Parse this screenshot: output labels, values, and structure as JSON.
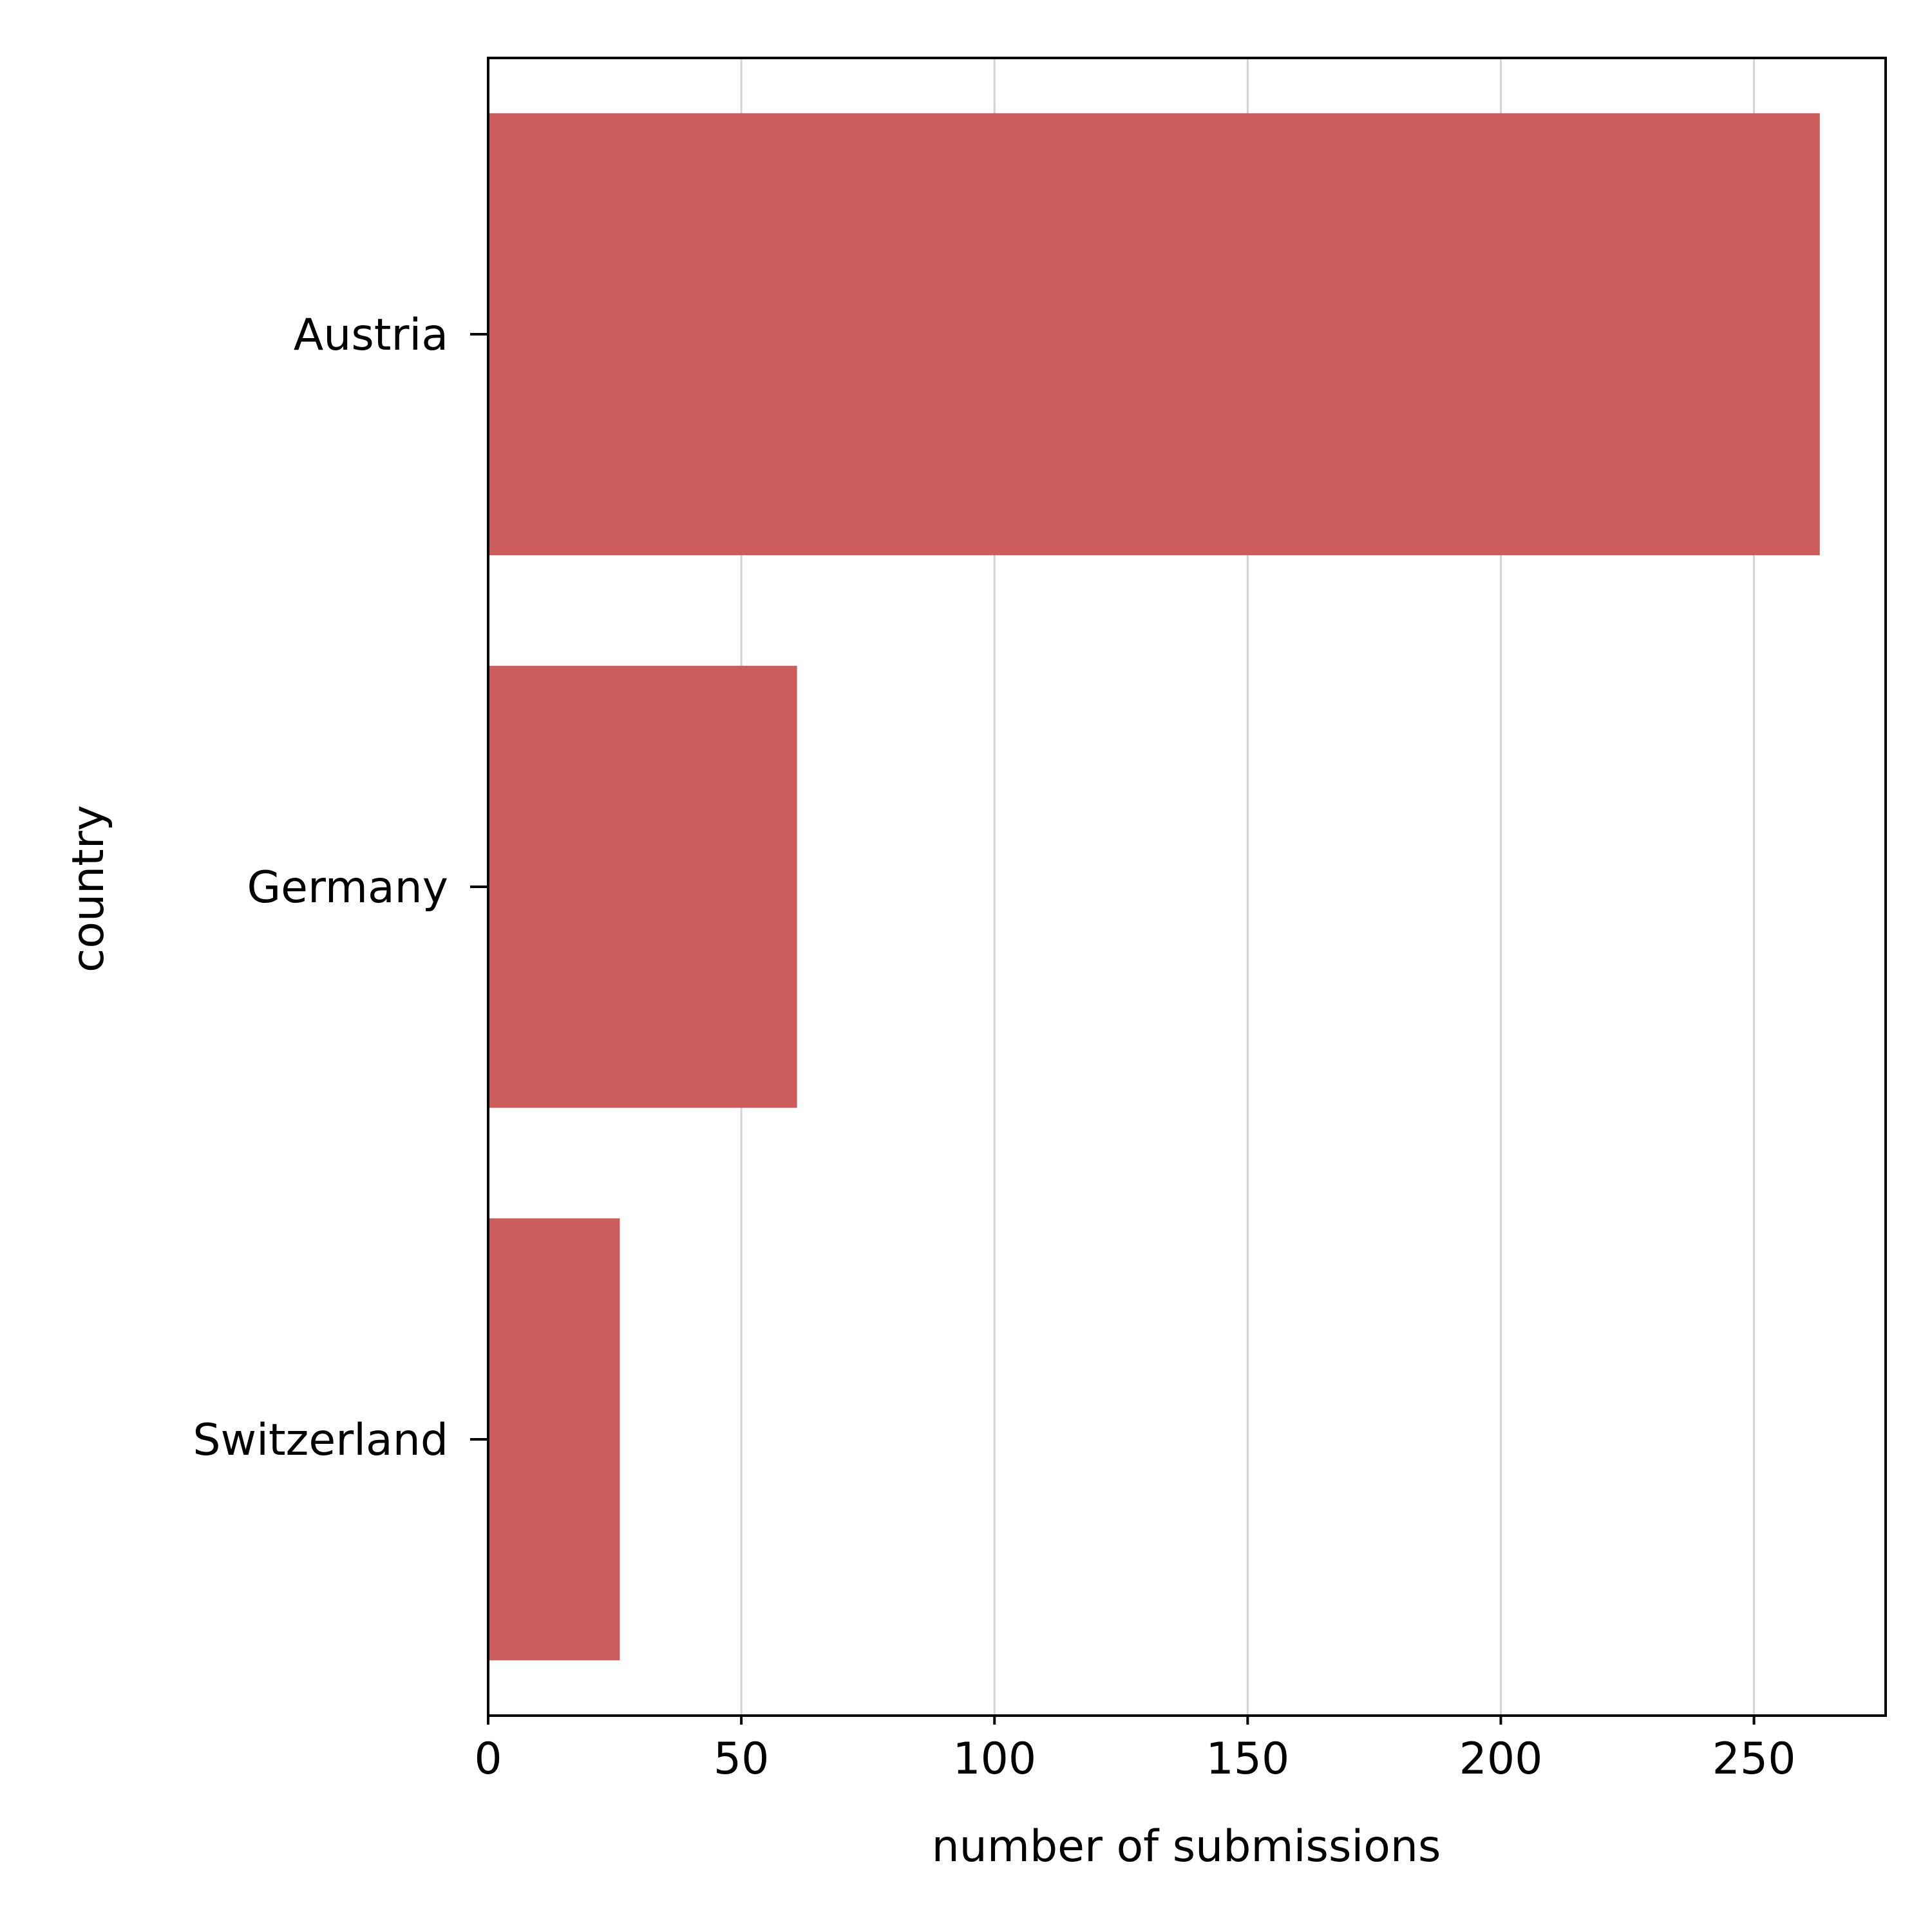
{
  "chart_data": {
    "type": "bar",
    "orientation": "horizontal",
    "title": "",
    "xlabel": "number of submissions",
    "ylabel": "country",
    "categories": [
      "Austria",
      "Germany",
      "Switzerland"
    ],
    "values": [
      263,
      61,
      26
    ],
    "xlim": [
      0,
      276
    ],
    "xticks": [
      0,
      50,
      100,
      150,
      200,
      250
    ],
    "grid": "vertical",
    "legend": "none",
    "bar_color": "#cd5c5c",
    "grid_color": "#d3d3d3"
  }
}
